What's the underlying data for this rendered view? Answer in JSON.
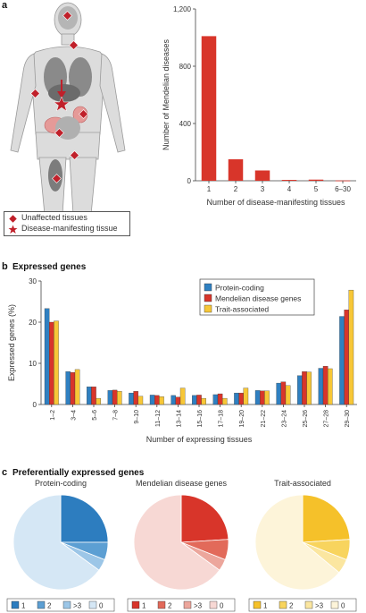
{
  "panels": {
    "a": {
      "letter": "a"
    },
    "b": {
      "letter": "b",
      "title": "Expressed genes"
    },
    "c": {
      "letter": "c",
      "title": "Preferentially expressed genes"
    }
  },
  "body_legend": {
    "unaffected": "Unaffected tissues",
    "manifesting": "Disease-manifesting tissue"
  },
  "colors": {
    "red_bar": "#d8352a",
    "blue": "#2f80c1",
    "red": "#d8352a",
    "yellow": "#f7c737",
    "marker": "#c0202a"
  },
  "chart_data": [
    {
      "type": "bar",
      "categories": [
        "1",
        "2",
        "3",
        "4",
        "5",
        "6–30"
      ],
      "values": [
        1010,
        150,
        72,
        6,
        8,
        2
      ],
      "xlabel": "Number of disease-manifesting tissues",
      "ylabel": "Number of Mendelian diseases",
      "ylim": [
        0,
        1200
      ],
      "yticks": [
        "0",
        "400",
        "800",
        "1,200"
      ],
      "grid": false
    },
    {
      "type": "bar",
      "categories": [
        "1–2",
        "3–4",
        "5–6",
        "7–8",
        "9–10",
        "11–12",
        "13–14",
        "15–16",
        "17–18",
        "19–20",
        "21–22",
        "23–24",
        "25–26",
        "27–28",
        "29–30"
      ],
      "series": [
        {
          "name": "Protein-coding",
          "values": [
            23.3,
            8.0,
            4.3,
            3.4,
            2.8,
            2.3,
            2.2,
            2.2,
            2.4,
            2.8,
            3.4,
            5.2,
            7.0,
            8.8,
            21.4
          ]
        },
        {
          "name": "Mendelian disease genes",
          "values": [
            20.0,
            7.8,
            4.3,
            3.5,
            3.2,
            2.2,
            1.8,
            2.3,
            2.6,
            2.8,
            3.3,
            5.5,
            8.0,
            9.3,
            23.0
          ]
        },
        {
          "name": "Trait-associated",
          "values": [
            20.3,
            8.5,
            1.5,
            3.2,
            2.0,
            1.9,
            4.0,
            1.5,
            1.5,
            4.0,
            3.3,
            4.6,
            7.9,
            8.7,
            27.8
          ]
        }
      ],
      "xlabel": "Number of expressing tissues",
      "ylabel": "Expressed genes (%)",
      "ylim": [
        0,
        30
      ],
      "yticks": [
        "0",
        "10",
        "20",
        "30"
      ],
      "legend": "top-right"
    },
    {
      "type": "pie",
      "title": "Protein-coding",
      "labels": [
        "1",
        "2",
        ">3",
        "0"
      ],
      "values": [
        25,
        6,
        4,
        65
      ],
      "colors": [
        "#2d7dbf",
        "#5c9fd3",
        "#9cc6e7",
        "#d5e7f5"
      ]
    },
    {
      "type": "pie",
      "title": "Mendelian disease genes",
      "labels": [
        "1",
        "2",
        ">3",
        "0"
      ],
      "values": [
        24,
        7,
        4,
        65
      ],
      "colors": [
        "#d8352a",
        "#e26a5a",
        "#eca69c",
        "#f7d8d4"
      ]
    },
    {
      "type": "pie",
      "title": "Trait-associated",
      "labels": [
        "1",
        "2",
        ">3",
        "0"
      ],
      "values": [
        24,
        7,
        5,
        64
      ],
      "colors": [
        "#f5c12a",
        "#f8d45e",
        "#fbe6a0",
        "#fdf4d9"
      ]
    }
  ]
}
